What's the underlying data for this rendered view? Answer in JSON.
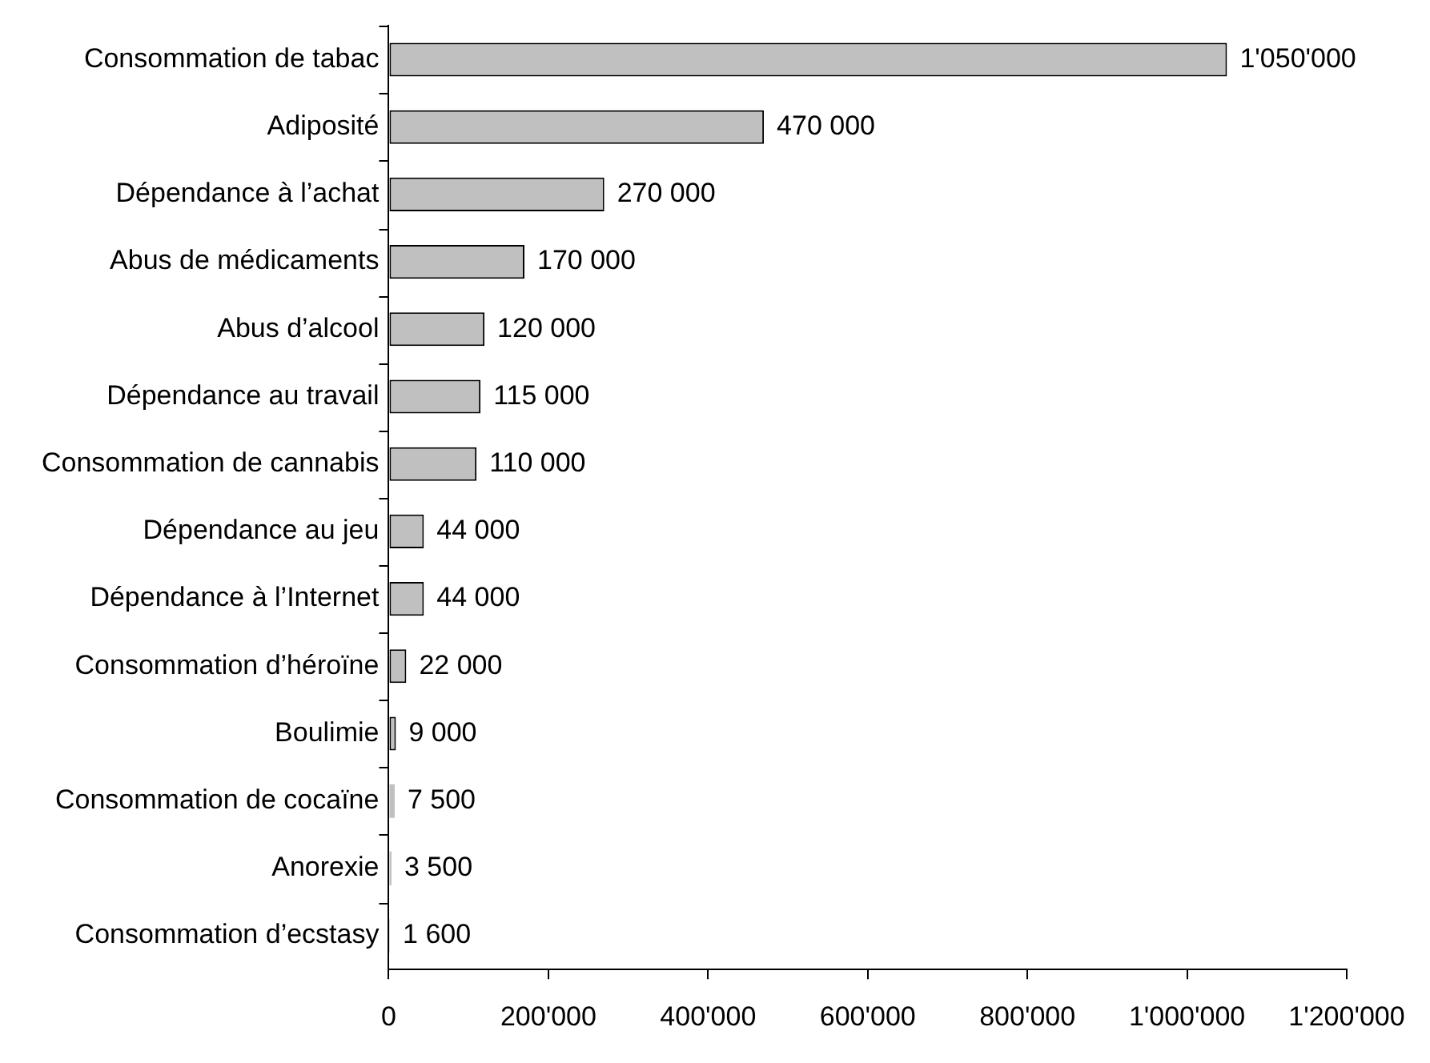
{
  "chart_data": {
    "type": "bar",
    "orientation": "horizontal",
    "categories": [
      "Consommation de tabac",
      "Adiposité",
      "Dépendance à l’achat",
      "Abus de médicaments",
      "Abus d’alcool",
      "Dépendance au travail",
      "Consommation de cannabis",
      "Dépendance au jeu",
      "Dépendance à l’Internet",
      "Consommation d’héroïne",
      "Boulimie",
      "Consommation de cocaïne",
      "Anorexie",
      "Consommation d’ecstasy"
    ],
    "values": [
      1050000,
      470000,
      270000,
      170000,
      120000,
      115000,
      110000,
      44000,
      44000,
      22000,
      9000,
      7500,
      3500,
      1600
    ],
    "value_labels": [
      "1'050'000",
      "470 000",
      "270 000",
      "170 000",
      "120 000",
      "115 000",
      "110 000",
      "44 000",
      "44 000",
      "22 000",
      "9 000",
      "7 500",
      "3 500",
      "1 600"
    ],
    "color": "#c0c0c0",
    "xlim": [
      0,
      1200000
    ],
    "xticks": [
      0,
      {
        "value": 200000,
        "label": "200'000"
      },
      {
        "value": 400000,
        "label": "400'000"
      },
      {
        "value": 600000,
        "label": "600'000"
      },
      {
        "value": 800000,
        "label": "800'000"
      },
      {
        "value": 1000000,
        "label": "1'000'000"
      },
      {
        "value": 1200000,
        "label": "1'200'000"
      }
    ],
    "grid": false,
    "legend": false
  }
}
